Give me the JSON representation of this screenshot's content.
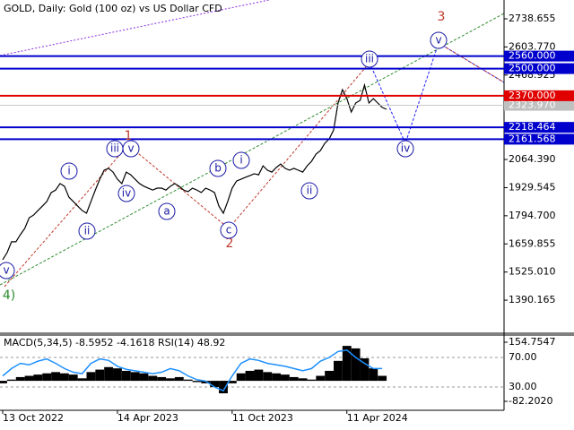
{
  "chart_data": [
    {
      "type": "line",
      "title": "GOLD, Daily:  Gold (100 oz) vs US Dollar CFD",
      "categories": [
        "13 Oct 2022",
        null,
        null,
        null,
        null,
        null,
        null,
        null,
        null,
        null,
        null,
        null,
        null,
        null,
        null,
        null,
        null,
        null,
        null,
        null,
        null,
        null,
        null,
        null,
        null,
        null,
        "14 Apr 2023",
        null,
        null,
        null,
        null,
        null,
        null,
        null,
        null,
        null,
        null,
        null,
        null,
        null,
        null,
        null,
        null,
        null,
        null,
        null,
        null,
        null,
        null,
        null,
        null,
        null,
        "11 Oct 2023",
        null,
        null,
        null,
        null,
        null,
        null,
        null,
        null,
        null,
        null,
        null,
        null,
        null,
        null,
        null,
        null,
        null,
        null,
        null,
        null,
        null,
        null,
        null,
        null,
        null,
        "11 Apr 2024",
        null,
        null,
        null,
        null,
        null,
        null,
        null,
        null,
        null
      ],
      "series": [
        {
          "color": "#000000",
          "values": [
            1584,
            1618,
            1670,
            1670,
            1704,
            1734,
            1785,
            1798,
            1820,
            1841,
            1863,
            1906,
            1918,
            1949,
            1936,
            1884,
            1863,
            1841,
            1820,
            1807,
            1863,
            1918,
            1970,
            2013,
            2022,
            2004,
            1970,
            1949,
            2004,
            1991,
            1970,
            1949,
            1936,
            1927,
            1918,
            1927,
            1927,
            1918,
            1936,
            1949,
            1936,
            1918,
            1910,
            1927,
            1918,
            1906,
            1927,
            1918,
            1906,
            1841,
            1807,
            1863,
            1927,
            1961,
            1970,
            1979,
            1987,
            1996,
            1991,
            2034,
            2013,
            2004,
            2026,
            2043,
            2022,
            2013,
            2022,
            2013,
            2004,
            2034,
            2056,
            2090,
            2107,
            2142,
            2163,
            2206,
            2335,
            2399,
            2356,
            2292,
            2335,
            2348,
            2421,
            2335,
            2356,
            2335,
            2314,
            2305
          ]
        }
      ],
      "ylim": [
        1231.6,
        2828.8
      ],
      "yticks": [
        {
          "value": 2738.655,
          "label": "2738.655"
        },
        {
          "value": 2603.77,
          "label": "2603.770"
        },
        {
          "value": 2468.925,
          "label": "2468.925"
        },
        {
          "value": 2064.39,
          "label": "2064.390"
        },
        {
          "value": 1929.545,
          "label": "1929.545"
        },
        {
          "value": 1794.7,
          "label": "1794.700"
        },
        {
          "value": 1659.855,
          "label": "1659.855"
        },
        {
          "value": 1525.01,
          "label": "1525.010"
        },
        {
          "value": 1390.165,
          "label": "1390.165"
        }
      ],
      "current_price": {
        "value": 2323.97,
        "label": "2323.970",
        "color": "#c0c0c0"
      },
      "levels": [
        {
          "value": 2560,
          "label": "2560.000",
          "color": "#0000cd"
        },
        {
          "value": 2500,
          "label": "2500.000",
          "color": "#0000cd"
        },
        {
          "value": 2370,
          "label": "2370.000",
          "color": "#e00000"
        },
        {
          "value": 2218.464,
          "label": "2218.464",
          "color": "#0000cd"
        },
        {
          "value": 2161.568,
          "label": "2161.568",
          "color": "#0000cd"
        }
      ],
      "annotations": [
        {
          "text": "1",
          "color": "#c0392b"
        },
        {
          "text": "2",
          "color": "#c0392b"
        },
        {
          "text": "3",
          "color": "#c0392b"
        },
        {
          "text": "4)",
          "color": "#2e8b2e"
        },
        {
          "text": "v",
          "color": "#1a1aa6"
        },
        {
          "text": "i",
          "color": "#1a1aa6"
        },
        {
          "text": "ii",
          "color": "#1a1aa6"
        },
        {
          "text": "iii",
          "color": "#1a1aa6"
        },
        {
          "text": "iv",
          "color": "#1a1aa6"
        },
        {
          "text": "v",
          "color": "#1a1aa6"
        },
        {
          "text": "a",
          "color": "#1a1aa6"
        },
        {
          "text": "b",
          "color": "#1a1aa6"
        },
        {
          "text": "c",
          "color": "#1a1aa6"
        },
        {
          "text": "i",
          "color": "#1a1aa6"
        },
        {
          "text": "ii",
          "color": "#1a1aa6"
        },
        {
          "text": "iii",
          "color": "#1a1aa6"
        },
        {
          "text": "iv",
          "color": "#1a1aa6"
        },
        {
          "text": "v",
          "color": "#1a1aa6"
        }
      ]
    },
    {
      "type": "bar",
      "title": "MACD(5,34,5) -8.5952 -4.1618 RSI(14) 48.92",
      "color": "#000000",
      "values": [
        -10,
        5,
        15,
        20,
        25,
        30,
        35,
        30,
        25,
        10,
        35,
        45,
        55,
        50,
        40,
        35,
        30,
        20,
        15,
        10,
        15,
        5,
        -5,
        -10,
        -25,
        -50,
        -10,
        30,
        40,
        45,
        35,
        30,
        25,
        15,
        10,
        5,
        20,
        40,
        80,
        140,
        130,
        90,
        50,
        20
      ],
      "ylim": [
        -118.1,
        179.9
      ],
      "yticks": [
        {
          "value": 154.7547,
          "label": "154.7547"
        },
        {
          "value": -82.202,
          "label": "-82.2020"
        }
      ],
      "series": [
        {
          "color": "#1e90ff",
          "axis": "y2",
          "values": [
            45,
            55,
            62,
            60,
            65,
            68,
            62,
            55,
            50,
            48,
            62,
            68,
            66,
            58,
            54,
            52,
            50,
            48,
            50,
            55,
            52,
            45,
            40,
            38,
            30,
            25,
            45,
            62,
            68,
            66,
            62,
            60,
            58,
            55,
            52,
            55,
            65,
            70,
            78,
            80,
            70,
            62,
            55,
            55
          ]
        }
      ],
      "y2lim": [
        -1.5,
        99.1
      ],
      "y2ticks": [
        {
          "value": 70,
          "label": "70.00"
        },
        {
          "value": 30,
          "label": "30.00"
        }
      ]
    }
  ]
}
